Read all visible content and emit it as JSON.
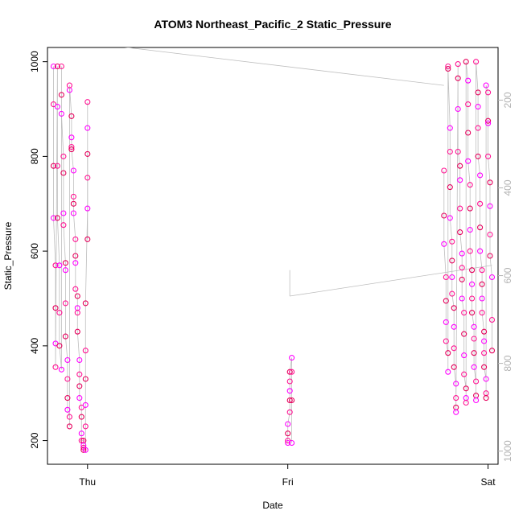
{
  "chart_data": {
    "type": "scatter",
    "title": "ATOM3 Northeast_Pacific_2 Static_Pressure",
    "xlabel": "Date",
    "ylabel": "Static_Pressure",
    "x_ticks": [
      "Thu",
      "Fri",
      "Sat"
    ],
    "x_range_days": [
      -0.2,
      2.05
    ],
    "ylim": [
      150,
      1030
    ],
    "y_ticks": [
      200,
      400,
      600,
      800,
      1000
    ],
    "right_axis": {
      "color": "#b3b3b3",
      "ticks": [
        200,
        400,
        600,
        800,
        1000
      ],
      "lim": [
        1030,
        80
      ]
    },
    "grid": false,
    "legend": "none",
    "point_colors": [
      "#ff00ff",
      "#ff1493",
      "#e5005c"
    ],
    "line_color": "#bebebe",
    "series": [
      {
        "values_x_days": [
          -0.17,
          -0.17,
          -0.17,
          -0.17,
          -0.16,
          -0.16,
          -0.16,
          -0.16,
          -0.15,
          -0.15,
          -0.15,
          -0.15,
          -0.14,
          -0.14,
          -0.14,
          -0.13,
          -0.13,
          -0.13,
          -0.13,
          -0.12,
          -0.12,
          -0.12,
          -0.12,
          -0.11,
          -0.11,
          -0.11,
          -0.11,
          -0.1,
          -0.1,
          -0.1,
          -0.1,
          -0.09,
          -0.09,
          -0.09,
          -0.09,
          -0.08,
          -0.08,
          -0.08,
          -0.08,
          -0.07,
          -0.07,
          -0.07,
          -0.07,
          -0.06,
          -0.06,
          -0.06,
          -0.06,
          -0.05,
          -0.05,
          -0.05,
          -0.05,
          -0.04,
          -0.04,
          -0.04,
          -0.04,
          -0.03,
          -0.03,
          -0.03,
          -0.03,
          -0.02,
          -0.02,
          -0.02,
          -0.02,
          -0.01,
          -0.01,
          -0.01,
          -0.01,
          -0.01,
          -0.01,
          0.0,
          0.0,
          0.0
        ],
        "values_y": [
          990,
          910,
          780,
          670,
          570,
          480,
          405,
          355,
          990,
          905,
          780,
          670,
          570,
          470,
          400,
          350,
          990,
          930,
          890,
          800,
          765,
          680,
          655,
          575,
          560,
          490,
          420,
          370,
          330,
          290,
          265,
          250,
          230,
          940,
          950,
          885,
          840,
          820,
          815,
          770,
          715,
          700,
          680,
          625,
          590,
          575,
          520,
          505,
          480,
          470,
          430,
          370,
          340,
          315,
          290,
          270,
          250,
          215,
          200,
          200,
          190,
          185,
          180,
          180,
          230,
          330,
          275,
          390,
          490,
          690,
          755,
          805
        ]
      },
      {
        "values_x_days": [
          0.0,
          0.0,
          0.0
        ],
        "values_y": [
          860,
          915,
          625
        ]
      },
      {
        "values_x_days": [
          1.0,
          1.0,
          1.0,
          1.0,
          1.01,
          1.01,
          1.01,
          1.01,
          1.01,
          1.02,
          1.02,
          1.02,
          1.02
        ],
        "values_y": [
          195,
          200,
          215,
          235,
          260,
          285,
          305,
          325,
          345,
          375,
          345,
          285,
          195
        ]
      },
      {
        "values_x_days": [
          1.78,
          1.78,
          1.78,
          1.79,
          1.79,
          1.79,
          1.79,
          1.8,
          1.8,
          1.8,
          1.8,
          1.81,
          1.81,
          1.81,
          1.81,
          1.82,
          1.82,
          1.82,
          1.82,
          1.83,
          1.83,
          1.83,
          1.83,
          1.84,
          1.84,
          1.84,
          1.84,
          1.85,
          1.85,
          1.85,
          1.85,
          1.86,
          1.86,
          1.86,
          1.86,
          1.87,
          1.87,
          1.87,
          1.87,
          1.88,
          1.88,
          1.88,
          1.88,
          1.89,
          1.89,
          1.89,
          1.89,
          1.9,
          1.9,
          1.9,
          1.9,
          1.91,
          1.91,
          1.91,
          1.91,
          1.92,
          1.92,
          1.92,
          1.92,
          1.93,
          1.93,
          1.93,
          1.93,
          1.94,
          1.94,
          1.94,
          1.94,
          1.95,
          1.95,
          1.95,
          1.95,
          1.96,
          1.96,
          1.96,
          1.96,
          1.97,
          1.97,
          1.97,
          1.97,
          1.98,
          1.98,
          1.98,
          1.98,
          1.99,
          1.99,
          1.99,
          1.99,
          2.0,
          2.0,
          2.0,
          2.0,
          2.01,
          2.01,
          2.01,
          2.01,
          2.02,
          2.02,
          2.02
        ],
        "values_y": [
          770,
          675,
          615,
          545,
          495,
          450,
          410,
          385,
          345,
          990,
          985,
          860,
          810,
          735,
          670,
          620,
          580,
          545,
          510,
          480,
          440,
          395,
          355,
          320,
          290,
          270,
          260,
          995,
          965,
          900,
          810,
          780,
          750,
          690,
          640,
          595,
          565,
          540,
          500,
          470,
          425,
          380,
          340,
          310,
          290,
          280,
          1000,
          960,
          910,
          850,
          790,
          740,
          690,
          645,
          600,
          560,
          530,
          500,
          470,
          440,
          415,
          385,
          355,
          325,
          295,
          285,
          1000,
          935,
          905,
          860,
          800,
          760,
          700,
          650,
          600,
          560,
          530,
          500,
          470,
          430,
          410,
          385,
          355,
          330,
          300,
          290,
          950,
          935,
          875,
          870,
          800,
          745,
          695,
          635,
          590,
          545,
          455,
          390
        ]
      }
    ]
  }
}
